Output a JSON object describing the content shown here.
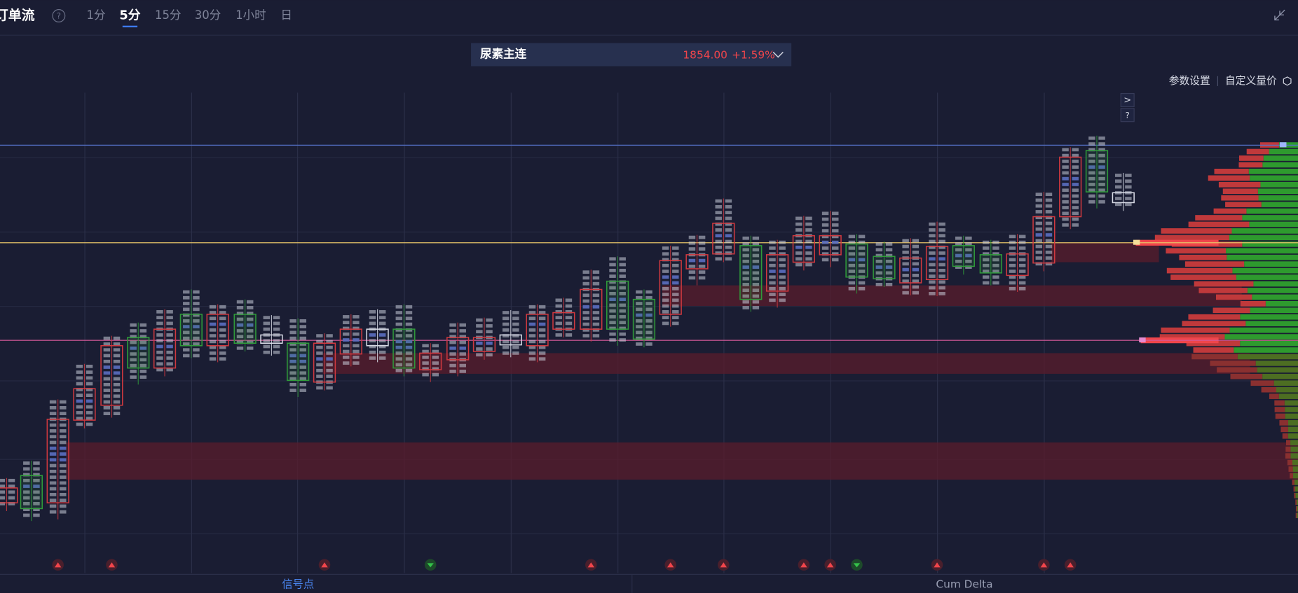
{
  "header": {
    "title": "订单流",
    "help": "?"
  },
  "tabs": [
    "1分",
    "5分",
    "15分",
    "30分",
    "1小时",
    "日"
  ],
  "active_tab": 1,
  "symbol": {
    "name": "尿素主连",
    "price": "1854.00",
    "change": "+1.59%"
  },
  "toolbar": [
    "参数设置",
    "自定义量价"
  ],
  "side_buttons": [
    ">",
    "?"
  ],
  "bottom_tabs": [
    "信号点",
    "Cum Delta"
  ],
  "active_bottom_tab": 0
}
